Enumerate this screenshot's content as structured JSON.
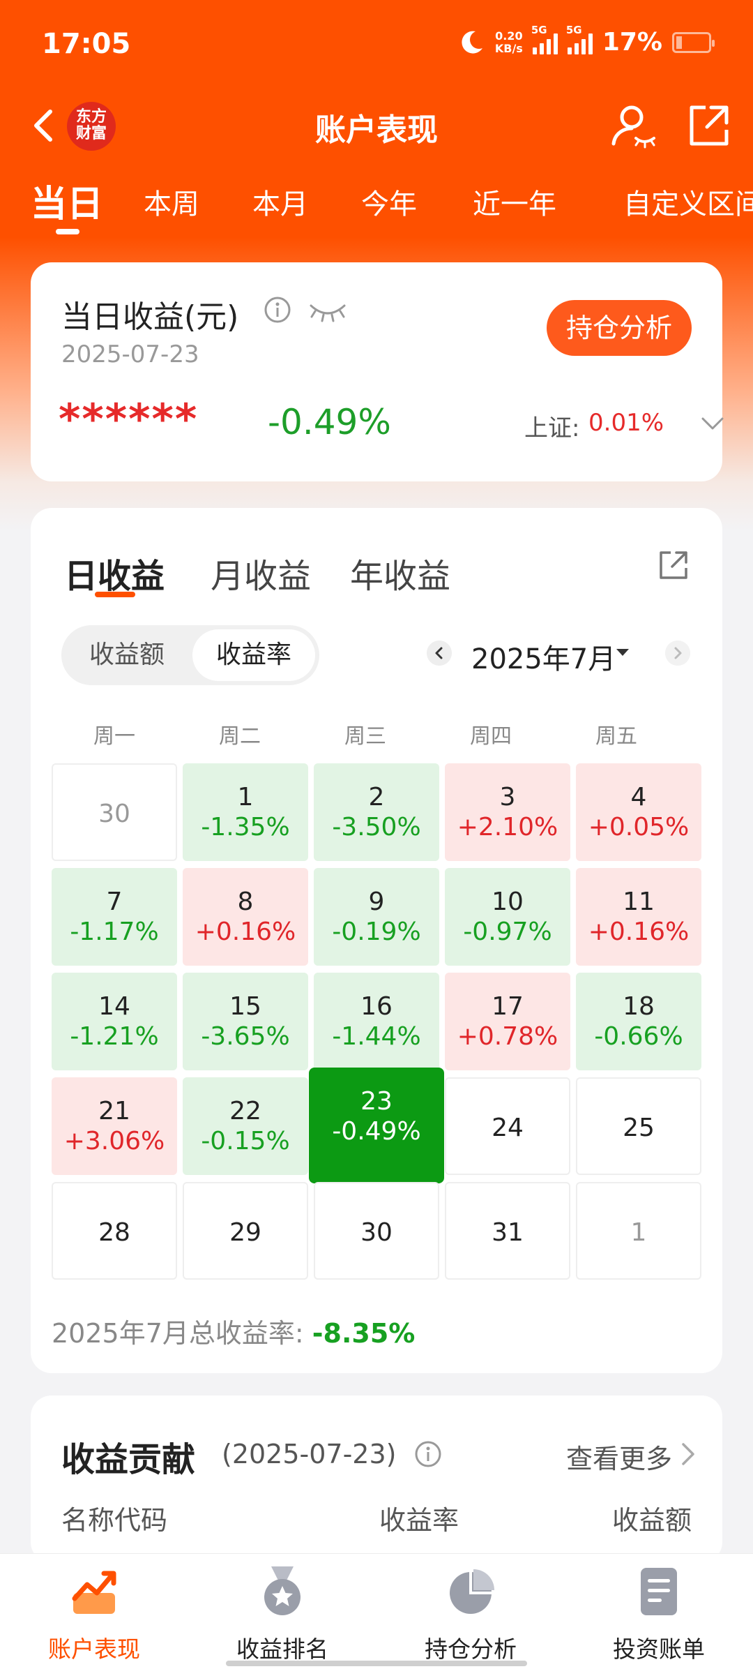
{
  "status": {
    "time": "17:05",
    "net_speed_top": "0.20",
    "net_speed_bottom": "KB/s",
    "sig1_label": "5G",
    "sig2_label": "5G",
    "battery": "17%"
  },
  "nav": {
    "logo_line1": "东方",
    "logo_line2": "财富",
    "title": "账户表现"
  },
  "period_tabs": [
    "当日",
    "本周",
    "本月",
    "今年",
    "近一年",
    "自定义区间"
  ],
  "summary": {
    "title": "当日收益(元)",
    "date": "2025-07-23",
    "hold_btn": "持仓分析",
    "masked_value": "******",
    "pct": "-0.49%",
    "index_label": "上证:",
    "index_value": "0.01%"
  },
  "earnings": {
    "tabs": [
      "日收益",
      "月收益",
      "年收益"
    ],
    "seg": [
      "收益额",
      "收益率"
    ],
    "month": "2025年7月",
    "weekdays": [
      "周一",
      "周二",
      "周三",
      "周四",
      "周五"
    ],
    "days": [
      {
        "d": "30",
        "p": "",
        "t": "dim"
      },
      {
        "d": "1",
        "p": "-1.35%",
        "t": "green"
      },
      {
        "d": "2",
        "p": "-3.50%",
        "t": "green"
      },
      {
        "d": "3",
        "p": "+2.10%",
        "t": "red"
      },
      {
        "d": "4",
        "p": "+0.05%",
        "t": "red"
      },
      {
        "d": "7",
        "p": "-1.17%",
        "t": "green"
      },
      {
        "d": "8",
        "p": "+0.16%",
        "t": "red"
      },
      {
        "d": "9",
        "p": "-0.19%",
        "t": "green"
      },
      {
        "d": "10",
        "p": "-0.97%",
        "t": "green"
      },
      {
        "d": "11",
        "p": "+0.16%",
        "t": "red"
      },
      {
        "d": "14",
        "p": "-1.21%",
        "t": "green"
      },
      {
        "d": "15",
        "p": "-3.65%",
        "t": "green"
      },
      {
        "d": "16",
        "p": "-1.44%",
        "t": "green"
      },
      {
        "d": "17",
        "p": "+0.78%",
        "t": "red"
      },
      {
        "d": "18",
        "p": "-0.66%",
        "t": "green"
      },
      {
        "d": "21",
        "p": "+3.06%",
        "t": "red"
      },
      {
        "d": "22",
        "p": "-0.15%",
        "t": "green"
      },
      {
        "d": "23",
        "p": "-0.49%",
        "t": "today"
      },
      {
        "d": "24",
        "p": "",
        "t": "empty"
      },
      {
        "d": "25",
        "p": "",
        "t": "empty"
      },
      {
        "d": "28",
        "p": "",
        "t": "empty"
      },
      {
        "d": "29",
        "p": "",
        "t": "empty"
      },
      {
        "d": "30",
        "p": "",
        "t": "empty"
      },
      {
        "d": "31",
        "p": "",
        "t": "empty"
      },
      {
        "d": "1",
        "p": "",
        "t": "dim"
      }
    ],
    "total_label": "2025年7月总收益率:",
    "total_value": "-8.35%"
  },
  "contribution": {
    "title": "收益贡献",
    "date": "(2025-07-23)",
    "more": "查看更多",
    "cols": [
      "名称代码",
      "收益率",
      "收益额"
    ]
  },
  "bottom_nav": [
    {
      "label": "账户表现",
      "icon": "chart-up-icon"
    },
    {
      "label": "收益排名",
      "icon": "medal-icon"
    },
    {
      "label": "持仓分析",
      "icon": "pie-chart-icon"
    },
    {
      "label": "投资账单",
      "icon": "document-icon"
    }
  ],
  "colors": {
    "brand": "#fe5000",
    "gain": "#e0262a",
    "loss": "#17a021",
    "today": "#0c9a13"
  }
}
